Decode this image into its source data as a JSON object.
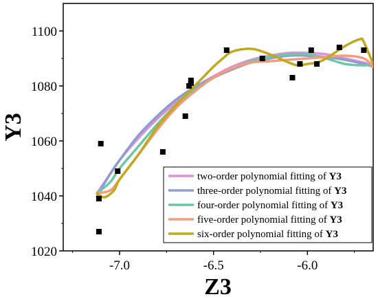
{
  "chart_data": {
    "type": "scatter",
    "xlabel": "Z3",
    "ylabel": "Y3",
    "xlim": [
      -7.3,
      -5.65
    ],
    "ylim": [
      1020,
      1110
    ],
    "xticks": [
      -7.0,
      -6.5,
      -6.0
    ],
    "xtick_labels": [
      "-7.0",
      "-6.5",
      "-6.0"
    ],
    "yticks": [
      1020,
      1040,
      1060,
      1080,
      1100
    ],
    "ytick_labels": [
      "1020",
      "1040",
      "1060",
      "1080",
      "1100"
    ],
    "grid": false,
    "legend_position": "bottom-right",
    "points": {
      "x": [
        -7.11,
        -7.11,
        -7.1,
        -7.01,
        -6.77,
        -6.65,
        -6.63,
        -6.62,
        -6.62,
        -6.43,
        -6.24,
        -6.08,
        -6.04,
        -5.98,
        -5.95,
        -5.83,
        -5.7
      ],
      "y": [
        1039,
        1027,
        1059,
        1049,
        1056,
        1069,
        1080,
        1081,
        1082,
        1093,
        1090,
        1083,
        1088,
        1093,
        1088,
        1094,
        1093
      ]
    },
    "series": [
      {
        "name": "two-order polynomial fitting of Y3",
        "name_prefix": "two-order polynomial fitting of ",
        "name_var": "Y3",
        "color": "#e090d8",
        "x": [
          -7.12,
          -7.05,
          -7.0,
          -6.9,
          -6.8,
          -6.7,
          -6.6,
          -6.5,
          -6.4,
          -6.3,
          -6.2,
          -6.1,
          -6.0,
          -5.9,
          -5.8,
          -5.7,
          -5.65
        ],
        "y": [
          1041,
          1048,
          1053,
          1061,
          1068,
          1074,
          1079.5,
          1083.5,
          1087,
          1089.5,
          1091,
          1092,
          1092,
          1091.5,
          1090,
          1088.5,
          1087.5
        ]
      },
      {
        "name": "three-order polynomial fitting of Y3",
        "name_prefix": "three-order polynomial fitting of ",
        "name_var": "Y3",
        "color": "#8f9ccf",
        "x": [
          -7.12,
          -7.05,
          -7.0,
          -6.9,
          -6.8,
          -6.7,
          -6.6,
          -6.5,
          -6.4,
          -6.3,
          -6.2,
          -6.1,
          -6.0,
          -5.9,
          -5.8,
          -5.7,
          -5.65
        ],
        "y": [
          1040,
          1048,
          1053,
          1062,
          1069,
          1075,
          1079.5,
          1083,
          1086,
          1088.5,
          1090,
          1091,
          1091,
          1090.5,
          1089.5,
          1088,
          1087
        ]
      },
      {
        "name": "four-order polynomial fitting of Y3",
        "name_prefix": "four-order polynomial fitting of ",
        "name_var": "Y3",
        "color": "#6cc6a8",
        "x": [
          -7.12,
          -7.05,
          -7.0,
          -6.9,
          -6.8,
          -6.7,
          -6.6,
          -6.5,
          -6.4,
          -6.3,
          -6.2,
          -6.1,
          -6.0,
          -5.9,
          -5.8,
          -5.7,
          -5.65
        ],
        "y": [
          1041,
          1045,
          1050,
          1058,
          1066,
          1073,
          1078.5,
          1083,
          1086.5,
          1089,
          1090.5,
          1091.5,
          1091.5,
          1090,
          1088,
          1087.5,
          1088
        ]
      },
      {
        "name": "five-order polynomial fitting of Y3",
        "name_prefix": "five-order polynomial fitting of ",
        "name_var": "Y3",
        "color": "#f29c7c",
        "x": [
          -7.12,
          -7.05,
          -7.0,
          -6.9,
          -6.8,
          -6.7,
          -6.6,
          -6.5,
          -6.4,
          -6.3,
          -6.2,
          -6.1,
          -6.0,
          -5.9,
          -5.8,
          -5.7,
          -5.65
        ],
        "y": [
          1041,
          1042,
          1046,
          1055,
          1064,
          1072,
          1078,
          1083,
          1086.5,
          1088.5,
          1089,
          1089.5,
          1090,
          1090.5,
          1091,
          1090,
          1087
        ]
      },
      {
        "name": "six-order polynomial fitting of Y3",
        "name_prefix": "six-order polynomial fitting of ",
        "name_var": "Y3",
        "color": "#c2a81c",
        "x": [
          -7.12,
          -7.08,
          -7.03,
          -7.0,
          -6.9,
          -6.8,
          -6.7,
          -6.6,
          -6.5,
          -6.45,
          -6.4,
          -6.3,
          -6.2,
          -6.1,
          -6.05,
          -6.0,
          -5.95,
          -5.9,
          -5.8,
          -5.72,
          -5.7,
          -5.65
        ],
        "y": [
          1041,
          1039.5,
          1042,
          1046,
          1055,
          1065,
          1073,
          1080,
          1087,
          1090,
          1092.5,
          1093.5,
          1091.5,
          1088.5,
          1087.5,
          1088,
          1088.5,
          1090,
          1094.5,
          1097,
          1096,
          1088
        ]
      }
    ]
  }
}
